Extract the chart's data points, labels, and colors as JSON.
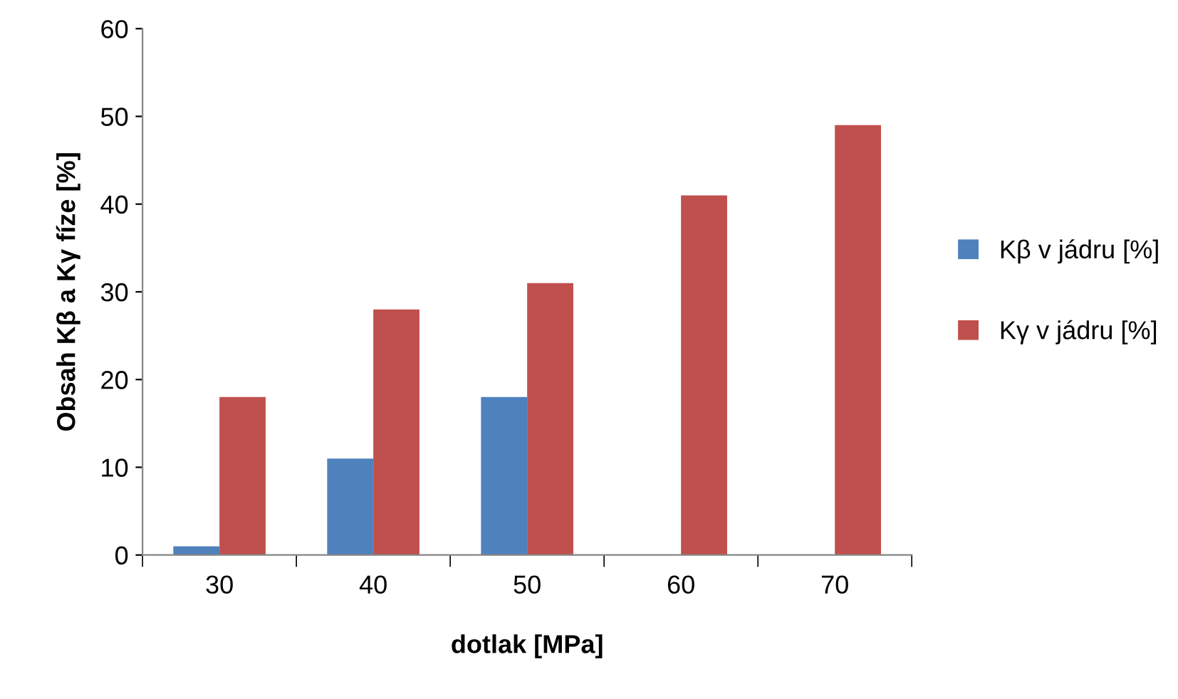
{
  "chart_data": {
    "type": "bar",
    "xlabel": "dotlak [MPa]",
    "ylabel": "Obsah Kβ a Kγ fíze [%]",
    "categories": [
      "30",
      "40",
      "50",
      "60",
      "70"
    ],
    "series": [
      {
        "name": "Kβ v jádru [%]",
        "color": "#4f81bd",
        "values": [
          1,
          11,
          18,
          null,
          null
        ]
      },
      {
        "name": "Kγ v jádru [%]",
        "color": "#c0504d",
        "values": [
          18,
          28,
          31,
          41,
          49
        ]
      }
    ],
    "ylim": [
      0,
      60
    ],
    "yticks": [
      0,
      10,
      20,
      30,
      40,
      50,
      60
    ],
    "grid": false,
    "legend": "right"
  }
}
